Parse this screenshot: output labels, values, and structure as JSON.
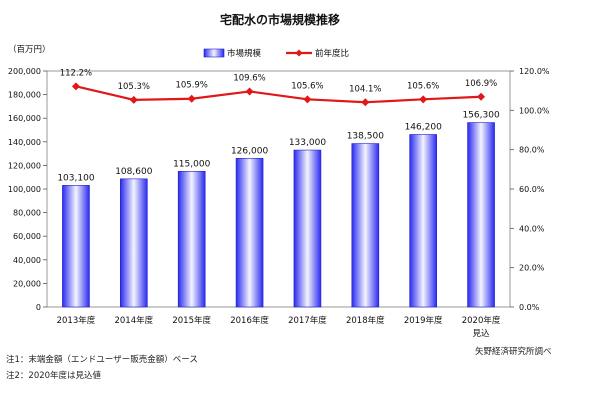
{
  "chart_data": {
    "type": "bar",
    "title": "宅配水の市場規模推移",
    "ylabel": "（百万円）",
    "categories": [
      "2013年度",
      "2014年度",
      "2015年度",
      "2016年度",
      "2017年度",
      "2018年度",
      "2019年度",
      "2020年度"
    ],
    "category_notes": [
      "",
      "",
      "",
      "",
      "",
      "",
      "",
      "見込"
    ],
    "series": [
      {
        "name": "市場規模",
        "type": "bar",
        "axis": "left",
        "values": [
          103100,
          108600,
          115000,
          126000,
          133000,
          138500,
          146200,
          156300
        ],
        "labels": [
          "103,100",
          "108,600",
          "115,000",
          "126,000",
          "133,000",
          "138,500",
          "146,200",
          "156,300"
        ],
        "color": "#2a2af0"
      },
      {
        "name": "前年度比",
        "type": "line",
        "axis": "right",
        "values": [
          112.2,
          105.3,
          105.9,
          109.6,
          105.6,
          104.1,
          105.6,
          106.9
        ],
        "labels": [
          "112.2%",
          "105.3%",
          "105.9%",
          "109.6%",
          "105.6%",
          "104.1%",
          "105.6%",
          "106.9%"
        ],
        "color": "#e01818"
      }
    ],
    "ylim": [
      0,
      200000
    ],
    "y_ticks": [
      "0",
      "20,000",
      "40,000",
      "60,000",
      "80,000",
      "100,000",
      "120,000",
      "140,000",
      "160,000",
      "180,000",
      "200,000"
    ],
    "y2lim": [
      0,
      120
    ],
    "y2_ticks": [
      "0.0%",
      "20.0%",
      "40.0%",
      "60.0%",
      "80.0%",
      "100.0%",
      "120.0%"
    ],
    "grid": false,
    "legend_position": "top-center"
  },
  "notes": [
    "注1：末端金額（エンドユーザー販売金額）ベース",
    "注2：2020年度は見込値"
  ],
  "source": "矢野経済研究所調べ"
}
